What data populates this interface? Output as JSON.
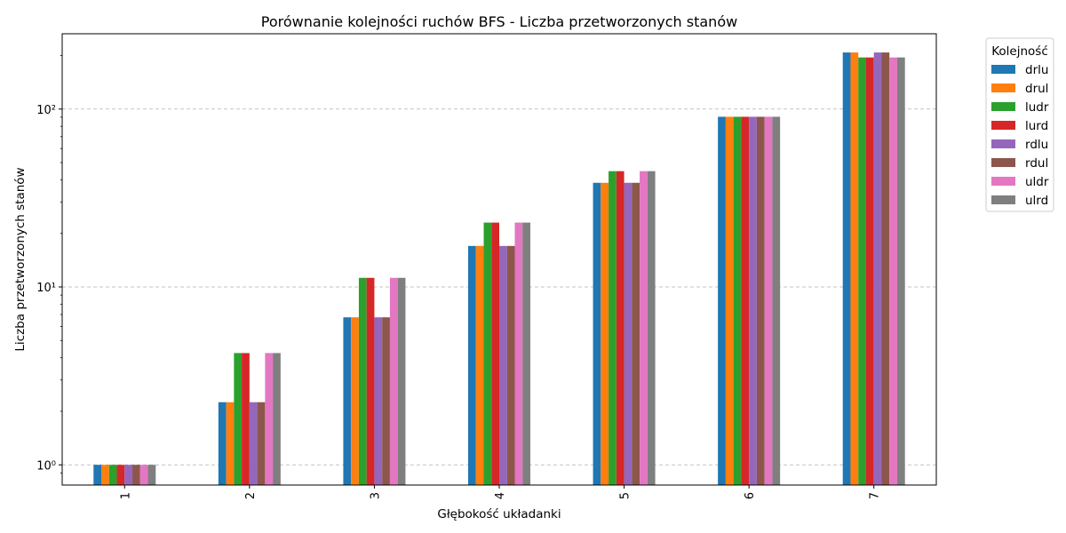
{
  "chart_data": {
    "type": "bar",
    "title": "Porównanie kolejności ruchów BFS - Liczba przetworzonych stanów",
    "xlabel": "Głębokość układanki",
    "ylabel": "Liczba przetworzonych stanów",
    "yscale": "log",
    "ylim": [
      0.77,
      265
    ],
    "yticks": [
      {
        "value": 1,
        "label": "10⁰"
      },
      {
        "value": 10,
        "label": "10¹"
      },
      {
        "value": 100,
        "label": "10²"
      }
    ],
    "grid": "y-dashed",
    "categories": [
      "1",
      "2",
      "3",
      "4",
      "5",
      "6",
      "7"
    ],
    "legend": {
      "title": "Kolejność",
      "placement": "outside-top-right"
    },
    "series": [
      {
        "name": "drlu",
        "color": "#1f77b4",
        "values": [
          1,
          2.25,
          6.75,
          17,
          38.5,
          90.5,
          208
        ]
      },
      {
        "name": "drul",
        "color": "#ff7f0e",
        "values": [
          1,
          2.25,
          6.75,
          17,
          38.5,
          90.5,
          208
        ]
      },
      {
        "name": "ludr",
        "color": "#2ca02c",
        "values": [
          1,
          4.25,
          11.25,
          23,
          44.75,
          90.5,
          195
        ]
      },
      {
        "name": "lurd",
        "color": "#d62728",
        "values": [
          1,
          4.25,
          11.25,
          23,
          44.75,
          90.5,
          195
        ]
      },
      {
        "name": "rdlu",
        "color": "#9467bd",
        "values": [
          1,
          2.25,
          6.75,
          17,
          38.5,
          90.5,
          208
        ]
      },
      {
        "name": "rdul",
        "color": "#8c564b",
        "values": [
          1,
          2.25,
          6.75,
          17,
          38.5,
          90.5,
          208
        ]
      },
      {
        "name": "uldr",
        "color": "#e377c2",
        "values": [
          1,
          4.25,
          11.25,
          23,
          44.75,
          90.5,
          195
        ]
      },
      {
        "name": "ulrd",
        "color": "#7f7f7f",
        "values": [
          1,
          4.25,
          11.25,
          23,
          44.75,
          90.5,
          195
        ]
      }
    ]
  }
}
